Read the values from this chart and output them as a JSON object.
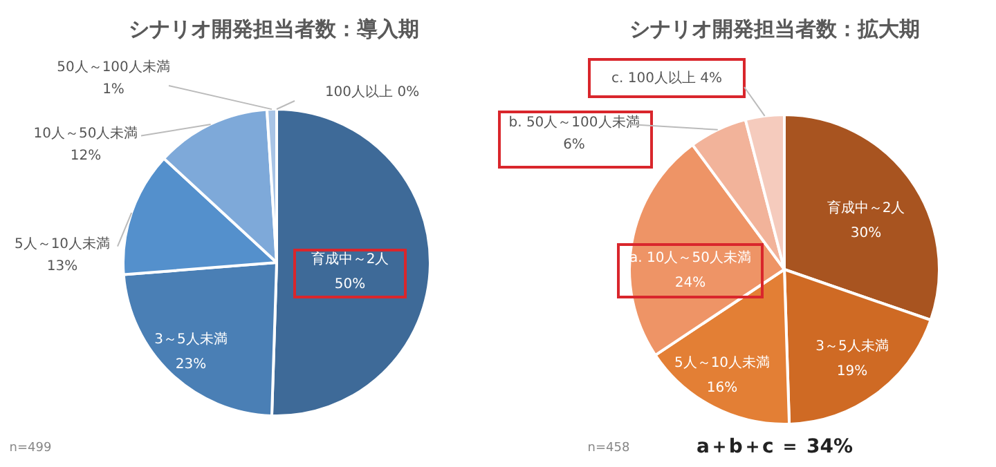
{
  "chart_data": [
    {
      "type": "pie",
      "title": "シナリオ開発担当者数：導入期",
      "categories": [
        "育成中～2人",
        "3～5人未満",
        "5人～10人未満",
        "10人～50人未満",
        "50人～100人未満",
        "100人以上"
      ],
      "values": [
        50,
        23,
        13,
        12,
        1,
        0
      ],
      "colors": [
        "#3e6a98",
        "#4a7fb5",
        "#5490cc",
        "#7ea9d9",
        "#a8c4e6",
        "#c7d9ef"
      ],
      "value_labels": [
        "50%",
        "23%",
        "13%",
        "12%",
        "1%",
        "0%"
      ],
      "annotations": [
        "n=499"
      ]
    },
    {
      "type": "pie",
      "title": "シナリオ開発担当者数：拡大期",
      "categories": [
        "育成中～2人",
        "3～5人未満",
        "5人～10人未満",
        "a. 10人～50人未満",
        "b. 50人～100人未満",
        "c. 100人以上"
      ],
      "values": [
        30,
        19,
        16,
        24,
        6,
        4
      ],
      "colors": [
        "#a85420",
        "#cf6a24",
        "#e37f35",
        "#ee9466",
        "#f2b39a",
        "#f5cbbd"
      ],
      "value_labels": [
        "30%",
        "19%",
        "16%",
        "24%",
        "6%",
        "4%"
      ],
      "annotations": [
        "n=458",
        "a＋b＋c ＝ 34%"
      ]
    }
  ]
}
